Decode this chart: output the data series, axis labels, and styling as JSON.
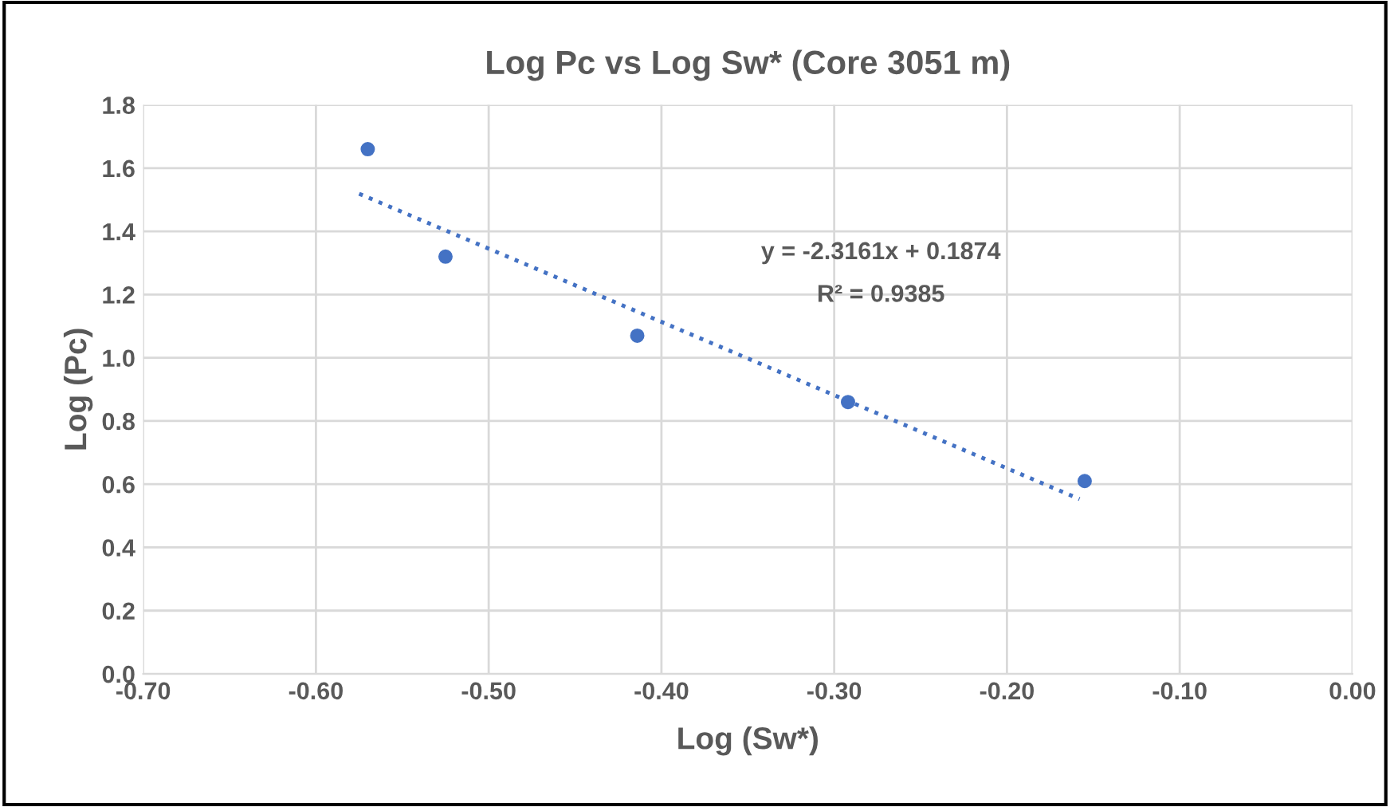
{
  "chart_data": {
    "type": "scatter",
    "title": "Log Pc vs Log Sw* (Core 3051 m)",
    "xlabel": "Log (Sw*)",
    "ylabel": "Log (Pc)",
    "series": [
      {
        "color": "#4472c4",
        "marker": "circle",
        "x": [
          -0.57,
          -0.525,
          -0.414,
          -0.292,
          -0.155
        ],
        "values": [
          1.66,
          1.32,
          1.07,
          0.86,
          0.61
        ]
      },
      {
        "type": "line",
        "color": "#4472c4",
        "marker": "none",
        "line_style": "dotted",
        "x": [
          -0.575,
          -0.158
        ],
        "values": [
          1.519,
          0.553
        ]
      }
    ],
    "xlim": [
      -0.7,
      0.0
    ],
    "ylim": [
      0.0,
      1.8
    ],
    "xticks": [
      {
        "value": -0.7,
        "label": "-0.70"
      },
      {
        "value": -0.6,
        "label": "-0.60"
      },
      {
        "value": -0.5,
        "label": "-0.50"
      },
      {
        "value": -0.4,
        "label": "-0.40"
      },
      {
        "value": -0.3,
        "label": "-0.30"
      },
      {
        "value": -0.2,
        "label": "-0.20"
      },
      {
        "value": -0.1,
        "label": "-0.10"
      },
      {
        "value": 0.0,
        "label": "0.00"
      }
    ],
    "yticks": [
      {
        "value": 0.0,
        "label": "0.0"
      },
      {
        "value": 0.2,
        "label": "0.2"
      },
      {
        "value": 0.4,
        "label": "0.4"
      },
      {
        "value": 0.6,
        "label": "0.6"
      },
      {
        "value": 0.8,
        "label": "0.8"
      },
      {
        "value": 1.0,
        "label": "1.0"
      },
      {
        "value": 1.2,
        "label": "1.2"
      },
      {
        "value": 1.4,
        "label": "1.4"
      },
      {
        "value": 1.6,
        "label": "1.6"
      },
      {
        "value": 1.8,
        "label": "1.8"
      }
    ],
    "grid": true,
    "legend": false,
    "annotations": [
      "y = -2.3161x + 0.1874",
      "R² = 0.9385"
    ]
  }
}
